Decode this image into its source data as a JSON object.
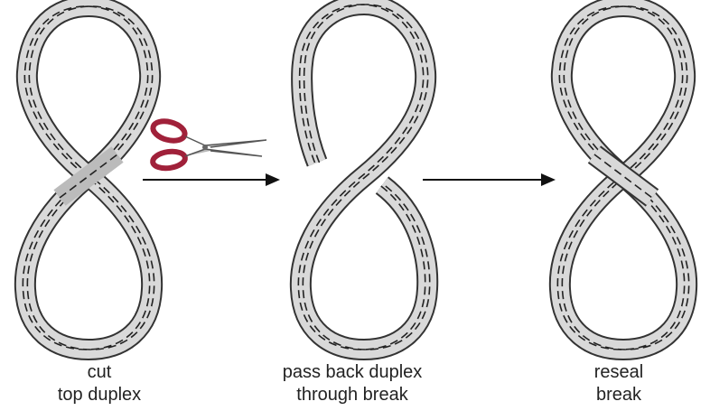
{
  "steps": [
    {
      "line1": "cut",
      "line2": "top duplex"
    },
    {
      "line1": "pass back duplex",
      "line2": "through break"
    },
    {
      "line1": "reseal",
      "line2": "break"
    }
  ],
  "icons": [
    "scissors-icon",
    "arrow-right-icon"
  ],
  "colors": {
    "scissors_handle": "#a0213a",
    "dna_strand": "#222222",
    "duplex_fill": "#d9d9d9"
  }
}
